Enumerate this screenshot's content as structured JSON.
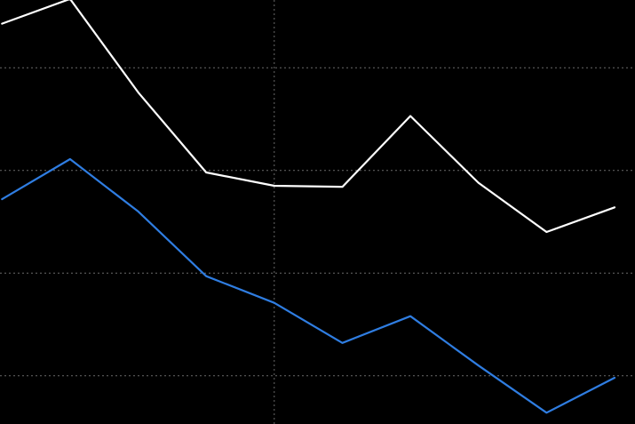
{
  "chart_data": {
    "type": "line",
    "title": "",
    "xlabel": "",
    "ylabel": "",
    "x": [
      0,
      1,
      2,
      3,
      4,
      5,
      6,
      7,
      8,
      9
    ],
    "xlim": [
      -0.03,
      9.3
    ],
    "ylim": [
      0,
      4.13
    ],
    "grid": true,
    "grid_y": [
      0.47,
      1.47,
      2.47,
      3.47
    ],
    "grid_x": [
      4
    ],
    "legend": "none",
    "series": [
      {
        "color": "#ffffff",
        "values": [
          3.9,
          4.14,
          3.23,
          2.45,
          2.32,
          2.31,
          3.0,
          2.35,
          1.87,
          2.11
        ]
      },
      {
        "color": "#2f7de1",
        "values": [
          2.19,
          2.58,
          2.07,
          1.44,
          1.18,
          0.79,
          1.05,
          0.57,
          0.11,
          0.45
        ]
      }
    ]
  }
}
